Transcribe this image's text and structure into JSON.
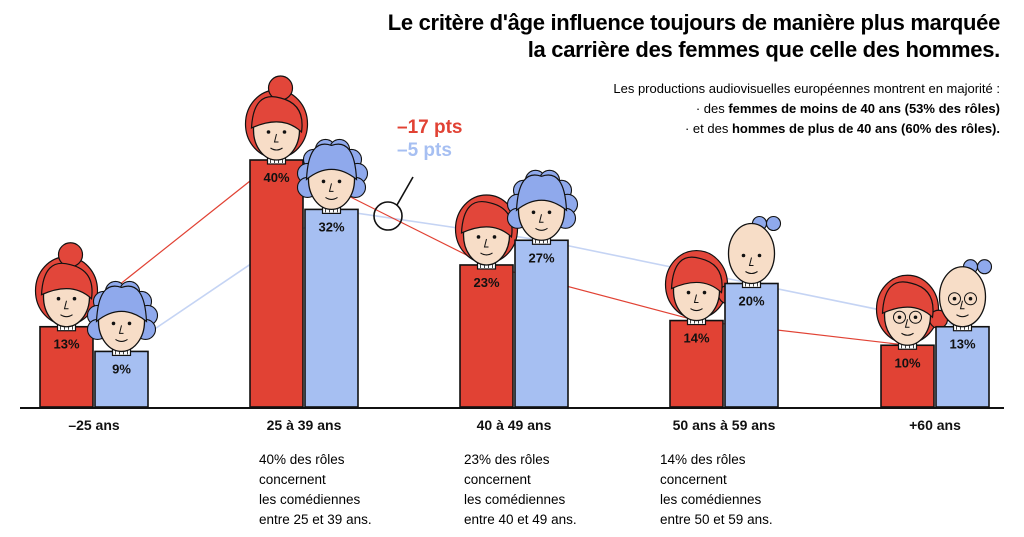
{
  "header": {
    "title_line1": "Le critère d'âge influence toujours de manière plus marquée",
    "title_line2": "la carrière des femmes que celle des hommes.",
    "intro": "Les productions audiovisuelles européennes montrent en majorité :",
    "bullet1_pre": "· des ",
    "bullet1_bold": "femmes de moins de 40 ans (53% des rôles)",
    "bullet2_pre": "· et des ",
    "bullet2_bold": "hommes de plus de 40 ans (60% des rôles)."
  },
  "annotation": {
    "women_drop": "–17 pts",
    "men_drop": "–5 pts"
  },
  "notes": [
    "40% des rôles\nconcernent\nles comédiennes\nentre 25 et 39 ans.",
    "23% des rôles\nconcernent\nles comédiennes\nentre 40 et 49 ans.",
    "14% des rôles\nconcernent\nles comédiennes\nentre 50 et 59 ans."
  ],
  "colors": {
    "women": "#e14234",
    "men": "#a6bff2",
    "hair_women": "#e2463a",
    "hair_men": "#8fa9ec",
    "skin": "#f7ddc7"
  },
  "chart_data": {
    "type": "bar",
    "categories": [
      "–25 ans",
      "25 à 39 ans",
      "40 à 49 ans",
      "50 ans à 59 ans",
      "+60 ans"
    ],
    "series": [
      {
        "values": [
          13,
          40,
          23,
          14,
          10
        ],
        "labels": [
          "13%",
          "40%",
          "23%",
          "14%",
          "10%"
        ]
      },
      {
        "values": [
          9,
          32,
          27,
          20,
          13
        ],
        "labels": [
          "9%",
          "32%",
          "27%",
          "20%",
          "13%"
        ]
      }
    ],
    "ylim": [
      0,
      40
    ],
    "grid": false,
    "legend": "none",
    "xlabel": "",
    "ylabel": ""
  }
}
